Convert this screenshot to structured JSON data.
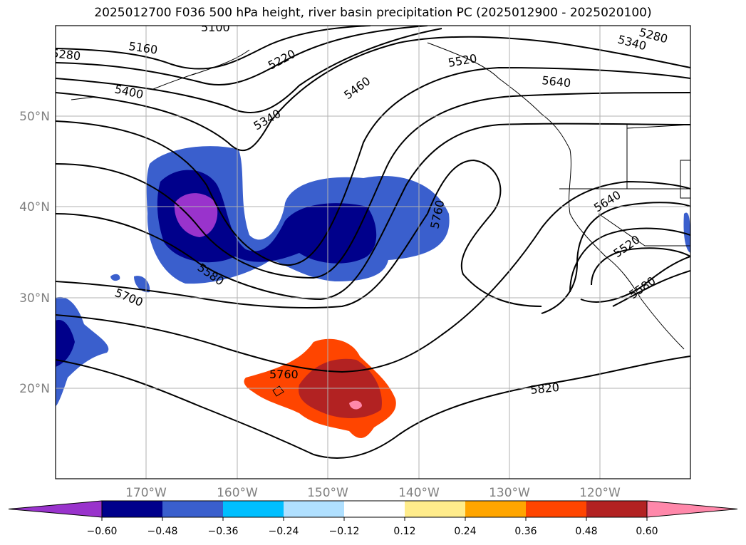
{
  "title": "2025012700 F036 500 hPa height, river basin precipitation PC (2025012900 - 2025020100)",
  "lat_labels": [
    "50°N",
    "40°N",
    "30°N",
    "20°N"
  ],
  "lon_labels": [
    "170°W",
    "160°W",
    "150°W",
    "140°W",
    "130°W",
    "120°W"
  ],
  "contour_labels": [
    "5100",
    "5160",
    "5220",
    "5280",
    "5280",
    "5340",
    "5340",
    "5400",
    "5460",
    "5520",
    "5520",
    "5580",
    "5580",
    "5640",
    "5640",
    "5700",
    "5760",
    "5760",
    "5820"
  ],
  "colorbar": {
    "tick_labels": [
      "−0.60",
      "−0.48",
      "−0.36",
      "−0.24",
      "−0.12",
      "0.12",
      "0.24",
      "0.36",
      "0.48",
      "0.60"
    ],
    "colors": [
      "#9933cc",
      "#00008b",
      "#3a5fcd",
      "#00bfff",
      "#b0e0ff",
      "#ffffff",
      "#ffec8b",
      "#ffa500",
      "#ff4500",
      "#b22222",
      "#ff88aa"
    ],
    "extend": "both"
  },
  "map": {
    "grid": true,
    "features": [
      "500 hPa height contours",
      "precipitation PC shading",
      "coastlines",
      "state and country borders"
    ]
  }
}
